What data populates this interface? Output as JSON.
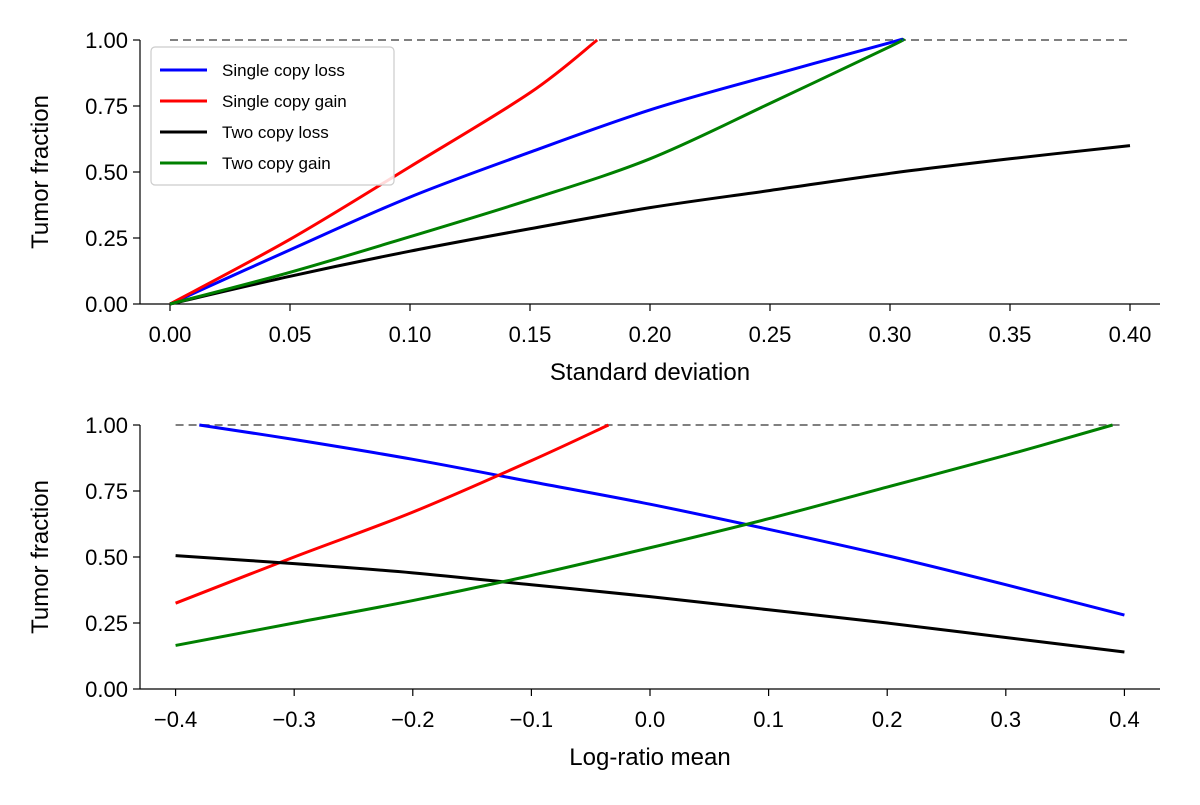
{
  "chart_data": [
    {
      "type": "line",
      "xlabel": "Standard deviation",
      "ylabel": "Tumor fraction",
      "xlim": [
        -0.0125,
        0.4125
      ],
      "ylim": [
        0.0,
        1.0
      ],
      "xticks": [
        0.0,
        0.05,
        0.1,
        0.15,
        0.2,
        0.25,
        0.3,
        0.35,
        0.4
      ],
      "xtick_labels": [
        "0.00",
        "0.05",
        "0.10",
        "0.15",
        "0.20",
        "0.25",
        "0.30",
        "0.35",
        "0.40"
      ],
      "yticks": [
        0.0,
        0.25,
        0.5,
        0.75,
        1.0
      ],
      "ytick_labels": [
        "0.00",
        "0.25",
        "0.50",
        "0.75",
        "1.00"
      ],
      "grid": false,
      "legend_position": "top-left",
      "reference_line": {
        "y": 1.0,
        "x_range": [
          0.0,
          0.4
        ],
        "style": "dashed",
        "color": "#808080"
      },
      "series": [
        {
          "name": "Single copy loss",
          "color": "#0000ff",
          "x": [
            0.0,
            0.05,
            0.1,
            0.15,
            0.2,
            0.25,
            0.3,
            0.304
          ],
          "y": [
            0.0,
            0.205,
            0.405,
            0.575,
            0.735,
            0.865,
            0.99,
            1.0
          ]
        },
        {
          "name": "Single copy gain",
          "color": "#ff0000",
          "x": [
            0.0,
            0.05,
            0.1,
            0.15,
            0.178
          ],
          "y": [
            0.0,
            0.245,
            0.52,
            0.8,
            1.0
          ]
        },
        {
          "name": "Two copy loss",
          "color": "#000000",
          "x": [
            0.0,
            0.05,
            0.1,
            0.15,
            0.2,
            0.25,
            0.3,
            0.35,
            0.4
          ],
          "y": [
            0.0,
            0.105,
            0.2,
            0.285,
            0.365,
            0.43,
            0.495,
            0.55,
            0.6
          ]
        },
        {
          "name": "Two copy gain",
          "color": "#008000",
          "x": [
            0.0,
            0.05,
            0.1,
            0.15,
            0.2,
            0.25,
            0.3,
            0.305
          ],
          "y": [
            0.0,
            0.12,
            0.255,
            0.395,
            0.55,
            0.76,
            0.975,
            1.0
          ]
        }
      ]
    },
    {
      "type": "line",
      "xlabel": "Log-ratio mean",
      "ylabel": "Tumor fraction",
      "xlim": [
        -0.43,
        0.43
      ],
      "ylim": [
        0.0,
        1.0
      ],
      "xticks": [
        -0.4,
        -0.3,
        -0.2,
        -0.1,
        0.0,
        0.1,
        0.2,
        0.3,
        0.4
      ],
      "xtick_labels": [
        "−0.4",
        "−0.3",
        "−0.2",
        "−0.1",
        "0.0",
        "0.1",
        "0.2",
        "0.3",
        "0.4"
      ],
      "yticks": [
        0.0,
        0.25,
        0.5,
        0.75,
        1.0
      ],
      "ytick_labels": [
        "0.00",
        "0.25",
        "0.50",
        "0.75",
        "1.00"
      ],
      "grid": false,
      "reference_line": {
        "y": 1.0,
        "x_range": [
          -0.4,
          0.4
        ],
        "style": "dashed",
        "color": "#808080"
      },
      "series": [
        {
          "name": "Single copy loss",
          "color": "#0000ff",
          "x": [
            -0.38,
            -0.3,
            -0.2,
            -0.1,
            0.0,
            0.1,
            0.2,
            0.3,
            0.4
          ],
          "y": [
            1.0,
            0.945,
            0.87,
            0.785,
            0.7,
            0.605,
            0.505,
            0.395,
            0.28
          ]
        },
        {
          "name": "Single copy gain",
          "color": "#ff0000",
          "x": [
            -0.4,
            -0.3,
            -0.2,
            -0.1,
            -0.035
          ],
          "y": [
            0.325,
            0.5,
            0.67,
            0.865,
            1.0
          ]
        },
        {
          "name": "Two copy loss",
          "color": "#000000",
          "x": [
            -0.4,
            -0.3,
            -0.2,
            -0.1,
            0.0,
            0.1,
            0.2,
            0.3,
            0.4
          ],
          "y": [
            0.505,
            0.475,
            0.44,
            0.395,
            0.35,
            0.3,
            0.25,
            0.195,
            0.14
          ]
        },
        {
          "name": "Two copy gain",
          "color": "#008000",
          "x": [
            -0.4,
            -0.3,
            -0.2,
            -0.1,
            0.0,
            0.1,
            0.2,
            0.3,
            0.39
          ],
          "y": [
            0.165,
            0.25,
            0.335,
            0.43,
            0.535,
            0.645,
            0.765,
            0.885,
            1.0
          ]
        }
      ]
    }
  ]
}
